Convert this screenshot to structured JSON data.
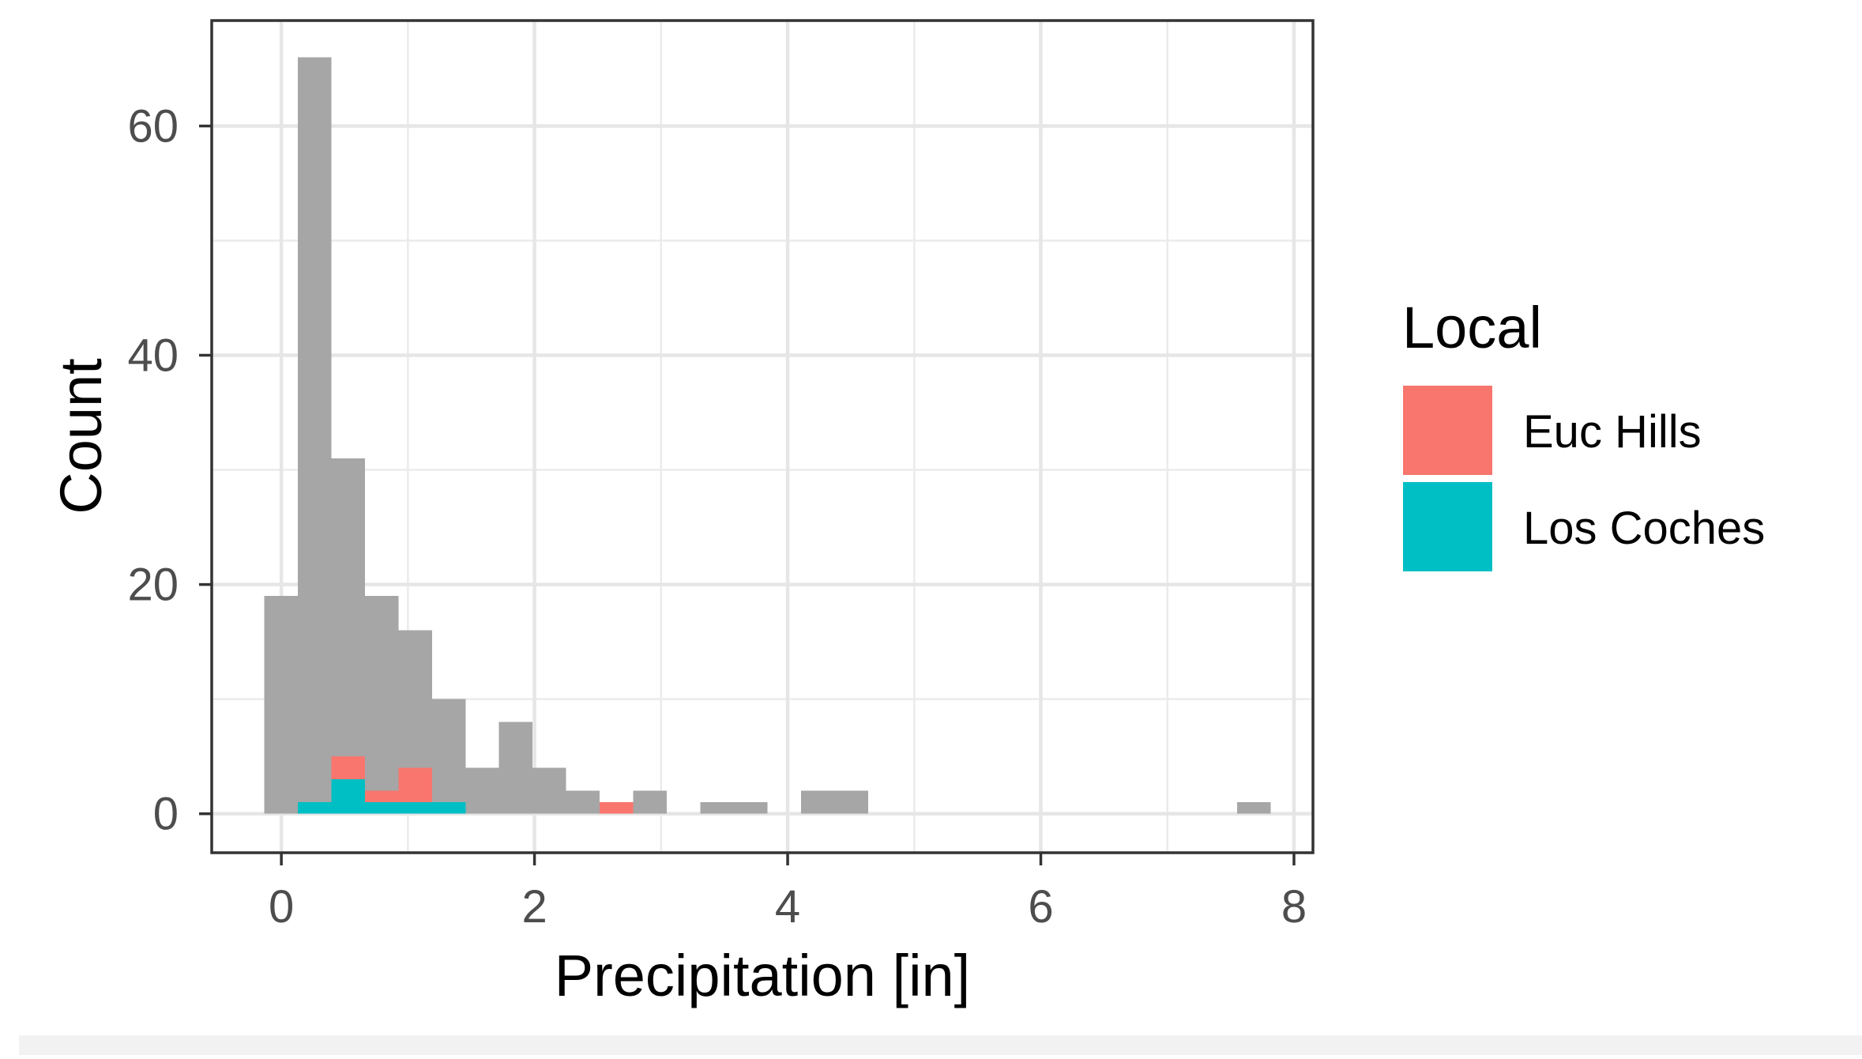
{
  "chart_data": {
    "type": "bar",
    "subtype": "histogram",
    "xlabel": "Precipitation [in]",
    "ylabel": "Count",
    "xlim": [
      -0.55,
      8.15
    ],
    "ylim": [
      -3.4,
      69.2
    ],
    "xticks": [
      0,
      2,
      4,
      6,
      8
    ],
    "xtick_labels": [
      "0",
      "2",
      "4",
      "6",
      "8"
    ],
    "yticks": [
      0,
      20,
      40,
      60
    ],
    "ytick_labels": [
      "0",
      "20",
      "40",
      "60"
    ],
    "grid": true,
    "legend": {
      "title": "Local",
      "placement": "right"
    },
    "bin_width": 0.265,
    "background_histogram": {
      "color": "#a6a6a6",
      "bins": [
        {
          "x0": -0.135,
          "x1": 0.13,
          "count": 19
        },
        {
          "x0": 0.13,
          "x1": 0.395,
          "count": 66
        },
        {
          "x0": 0.395,
          "x1": 0.66,
          "count": 31
        },
        {
          "x0": 0.66,
          "x1": 0.925,
          "count": 19
        },
        {
          "x0": 0.925,
          "x1": 1.19,
          "count": 16
        },
        {
          "x0": 1.19,
          "x1": 1.455,
          "count": 10
        },
        {
          "x0": 1.455,
          "x1": 1.72,
          "count": 4
        },
        {
          "x0": 1.72,
          "x1": 1.985,
          "count": 8
        },
        {
          "x0": 1.985,
          "x1": 2.25,
          "count": 4
        },
        {
          "x0": 2.25,
          "x1": 2.515,
          "count": 2
        },
        {
          "x0": 2.515,
          "x1": 2.78,
          "count": 1
        },
        {
          "x0": 2.78,
          "x1": 3.045,
          "count": 2
        },
        {
          "x0": 3.31,
          "x1": 3.575,
          "count": 1
        },
        {
          "x0": 3.575,
          "x1": 3.84,
          "count": 1
        },
        {
          "x0": 4.105,
          "x1": 4.37,
          "count": 2
        },
        {
          "x0": 4.37,
          "x1": 4.635,
          "count": 2
        },
        {
          "x0": 7.55,
          "x1": 7.815,
          "count": 1
        }
      ]
    },
    "series": [
      {
        "name": "Euc Hills",
        "color": "#f8766d",
        "bins": [
          {
            "x0": 0.395,
            "x1": 0.66,
            "count": 2
          },
          {
            "x0": 0.66,
            "x1": 0.925,
            "count": 1
          },
          {
            "x0": 0.925,
            "x1": 1.19,
            "count": 3
          },
          {
            "x0": 2.515,
            "x1": 2.78,
            "count": 1
          }
        ]
      },
      {
        "name": "Los Coches",
        "color": "#00bfc4",
        "bins": [
          {
            "x0": 0.13,
            "x1": 0.395,
            "count": 1
          },
          {
            "x0": 0.395,
            "x1": 0.66,
            "count": 3
          },
          {
            "x0": 0.66,
            "x1": 0.925,
            "count": 1
          },
          {
            "x0": 0.925,
            "x1": 1.19,
            "count": 1
          },
          {
            "x0": 1.19,
            "x1": 1.455,
            "count": 1
          }
        ]
      }
    ]
  }
}
